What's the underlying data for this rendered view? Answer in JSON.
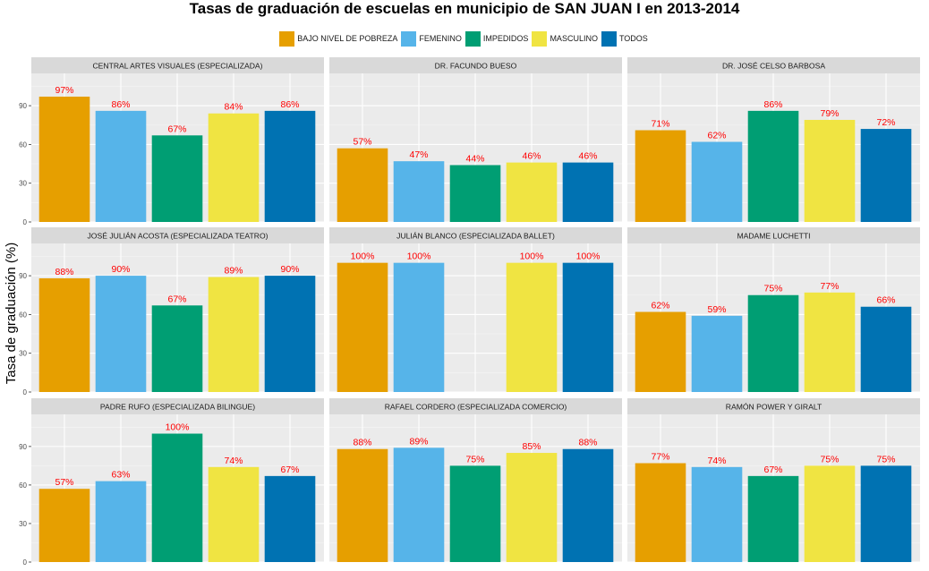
{
  "chart_data": {
    "type": "bar",
    "title": "Tasas de graduación de escuelas en municipio de SAN JUAN I en 2013-2014",
    "ylabel": "Tasa de graduación (%)",
    "xlabel": "",
    "ylim": [
      0,
      115
    ],
    "yticks": [
      0,
      30,
      60,
      90
    ],
    "grid": true,
    "legend_position": "top",
    "categories": [
      "BAJO NIVEL DE POBREZA",
      "FEMENINO",
      "IMPEDIDOS",
      "MASCULINO",
      "TODOS"
    ],
    "colors": [
      "#E69F00",
      "#56B4E9",
      "#009E73",
      "#F0E442",
      "#0072B2"
    ],
    "label_color": "#FF0000",
    "panels": [
      {
        "title": "CENTRAL ARTES VISUALES (ESPECIALIZADA)",
        "values": [
          97,
          86,
          67,
          84,
          86
        ],
        "labels": [
          "97%",
          "86%",
          "67%",
          "84%",
          "86%"
        ]
      },
      {
        "title": "DR. FACUNDO BUESO",
        "values": [
          57,
          47,
          44,
          46,
          46
        ],
        "labels": [
          "57%",
          "47%",
          "44%",
          "46%",
          "46%"
        ]
      },
      {
        "title": "DR. JOSÉ CELSO BARBOSA",
        "values": [
          71,
          62,
          86,
          79,
          72
        ],
        "labels": [
          "71%",
          "62%",
          "86%",
          "79%",
          "72%"
        ]
      },
      {
        "title": "JOSÉ JULIÁN ACOSTA (ESPECIALIZADA TEATRO)",
        "values": [
          88,
          90,
          67,
          89,
          90
        ],
        "labels": [
          "88%",
          "90%",
          "67%",
          "89%",
          "90%"
        ]
      },
      {
        "title": "JULIÁN BLANCO (ESPECIALIZADA BALLET)",
        "values": [
          100,
          100,
          null,
          100,
          100
        ],
        "labels": [
          "100%",
          "100%",
          "",
          "100%",
          "100%"
        ]
      },
      {
        "title": "MADAME LUCHETTI",
        "values": [
          62,
          59,
          75,
          77,
          66
        ],
        "labels": [
          "62%",
          "59%",
          "75%",
          "77%",
          "66%"
        ]
      },
      {
        "title": "PADRE RUFO (ESPECIALIZADA BILINGUE)",
        "values": [
          57,
          63,
          100,
          74,
          67
        ],
        "labels": [
          "57%",
          "63%",
          "100%",
          "74%",
          "67%"
        ]
      },
      {
        "title": "RAFAEL CORDERO (ESPECIALIZADA COMERCIO)",
        "values": [
          88,
          89,
          75,
          85,
          88
        ],
        "labels": [
          "88%",
          "89%",
          "75%",
          "85%",
          "88%"
        ]
      },
      {
        "title": "RAMÓN POWER Y GIRALT",
        "values": [
          77,
          74,
          67,
          75,
          75
        ],
        "labels": [
          "77%",
          "74%",
          "67%",
          "75%",
          "75%"
        ]
      }
    ]
  }
}
